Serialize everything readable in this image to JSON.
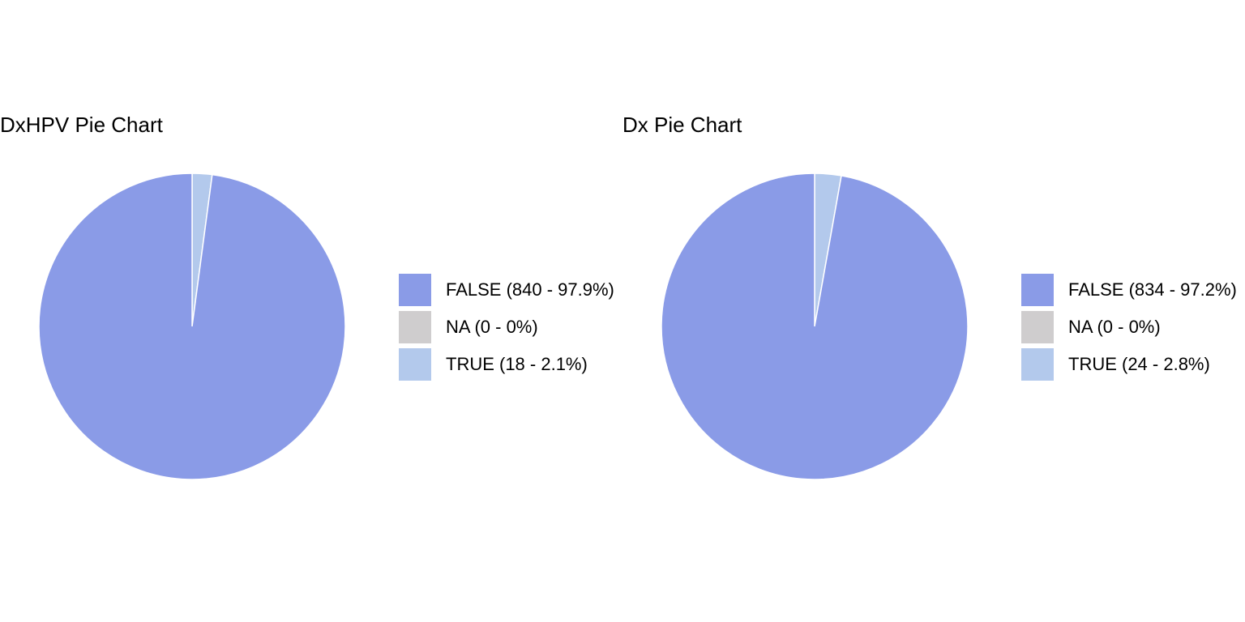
{
  "chart_data": [
    {
      "type": "pie",
      "title": "DxHPV Pie Chart",
      "categories": [
        "FALSE",
        "NA",
        "TRUE"
      ],
      "values": [
        840,
        0,
        18
      ],
      "legend": [
        "FALSE (840 - 97.9%)",
        "NA (0 - 0%)",
        "TRUE (18 - 2.1%)"
      ],
      "colors": [
        "#8a9be7",
        "#cfcdce",
        "#b3c9ec"
      ],
      "legend_position": "right"
    },
    {
      "type": "pie",
      "title": "Dx Pie Chart",
      "categories": [
        "FALSE",
        "NA",
        "TRUE"
      ],
      "values": [
        834,
        0,
        24
      ],
      "legend": [
        "FALSE (834 - 97.2%)",
        "NA (0 - 0%)",
        "TRUE (24 - 2.8%)"
      ],
      "colors": [
        "#8a9be7",
        "#cfcdce",
        "#b3c9ec"
      ],
      "legend_position": "right"
    }
  ]
}
